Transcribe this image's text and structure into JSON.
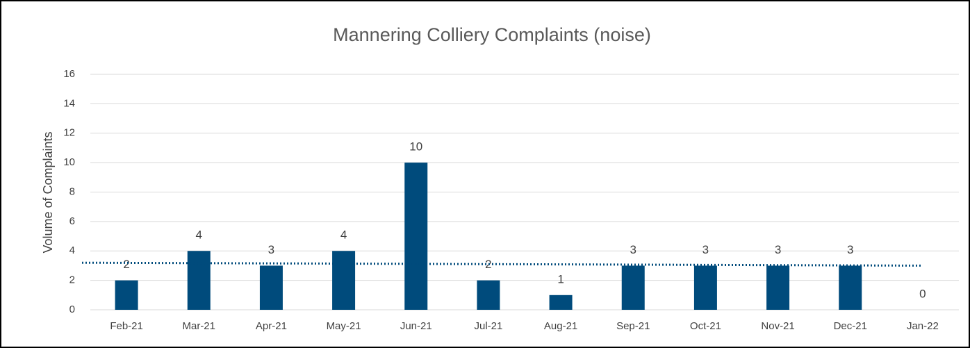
{
  "chart_data": {
    "type": "bar",
    "title": "Mannering Colliery Complaints (noise)",
    "y_label": "Volume of Complaints",
    "categories": [
      "Feb-21",
      "Mar-21",
      "Apr-21",
      "May-21",
      "Jun-21",
      "Jul-21",
      "Aug-21",
      "Sep-21",
      "Oct-21",
      "Nov-21",
      "Dec-21",
      "Jan-22"
    ],
    "values": [
      2,
      4,
      3,
      4,
      10,
      2,
      1,
      3,
      3,
      3,
      3,
      0
    ],
    "color": "#004b7c",
    "trendline": {
      "values": [
        3.2,
        3.0
      ],
      "color": "#004b7c"
    },
    "ylim": [
      0,
      16
    ],
    "yticks": [
      0,
      2,
      4,
      6,
      8,
      10,
      12,
      14,
      16
    ],
    "grid": true,
    "data_labels": true
  }
}
